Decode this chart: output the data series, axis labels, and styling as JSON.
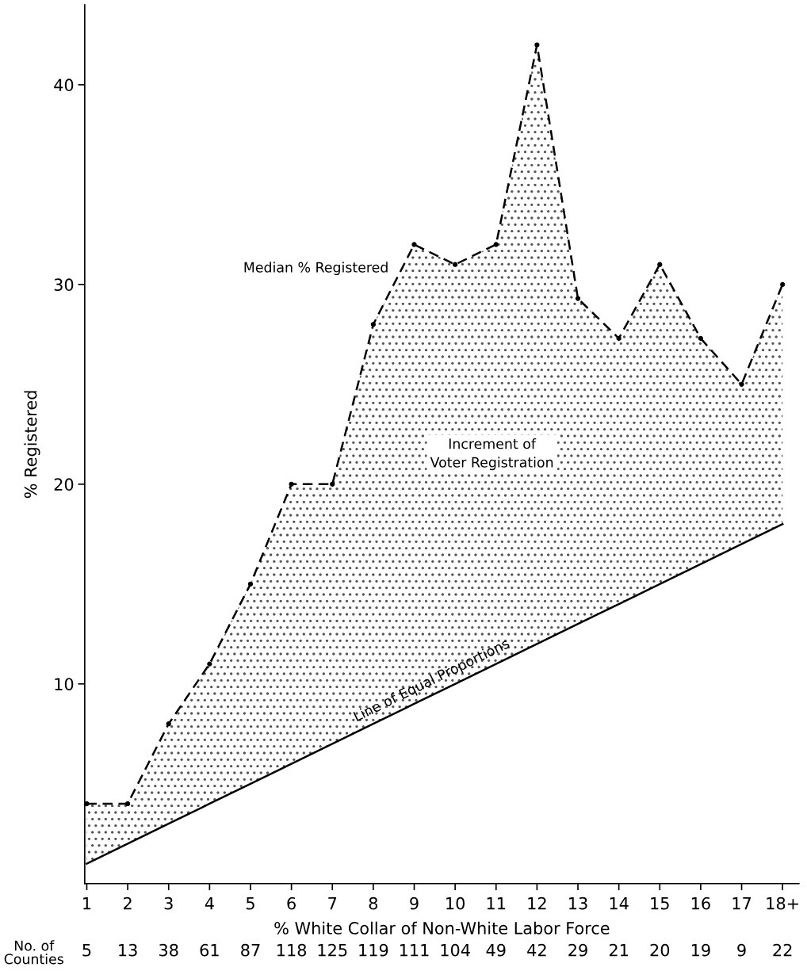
{
  "chart_data": {
    "type": "line",
    "xlabel": "% White Collar of Non-White Labor Force",
    "ylabel": "% Registered",
    "categories": [
      "1",
      "2",
      "3",
      "4",
      "5",
      "6",
      "7",
      "8",
      "9",
      "10",
      "11",
      "12",
      "13",
      "14",
      "15",
      "16",
      "17",
      "18+"
    ],
    "series": [
      {
        "name": "Median % Registered",
        "color": "#000000",
        "line_style": "dashed",
        "marker": "circle",
        "values": [
          4,
          4,
          8,
          11,
          15,
          20,
          20,
          28,
          32,
          31,
          32,
          42,
          29.3,
          27.3,
          31,
          27.3,
          25,
          30
        ],
        "lower": [
          1,
          2,
          3,
          4,
          5,
          6,
          7,
          8,
          9,
          10,
          11,
          12,
          13,
          14,
          15,
          16,
          17,
          18
        ],
        "upper": [
          4,
          4,
          8,
          11,
          15,
          20,
          20,
          28,
          32,
          31,
          32,
          42,
          29.3,
          27.3,
          31,
          27.3,
          25,
          30
        ]
      },
      {
        "name": "Line of Equal Proportions",
        "color": "#000000",
        "line_style": "solid",
        "marker": "none",
        "values": [
          1,
          2,
          3,
          4,
          5,
          6,
          7,
          8,
          9,
          10,
          11,
          12,
          13,
          14,
          15,
          16,
          17,
          18
        ]
      }
    ],
    "ylim": [
      0,
      44
    ],
    "yticks": [
      10,
      20,
      30,
      40
    ],
    "grid": false,
    "legend": false,
    "annotations": [
      "Increment of\nVoter Registration",
      "No. of\nCounties",
      "5",
      "13",
      "38",
      "61",
      "87",
      "118",
      "125",
      "119",
      "111",
      "104",
      "49",
      "42",
      "29",
      "21",
      "20",
      "19",
      "9",
      "22"
    ]
  }
}
